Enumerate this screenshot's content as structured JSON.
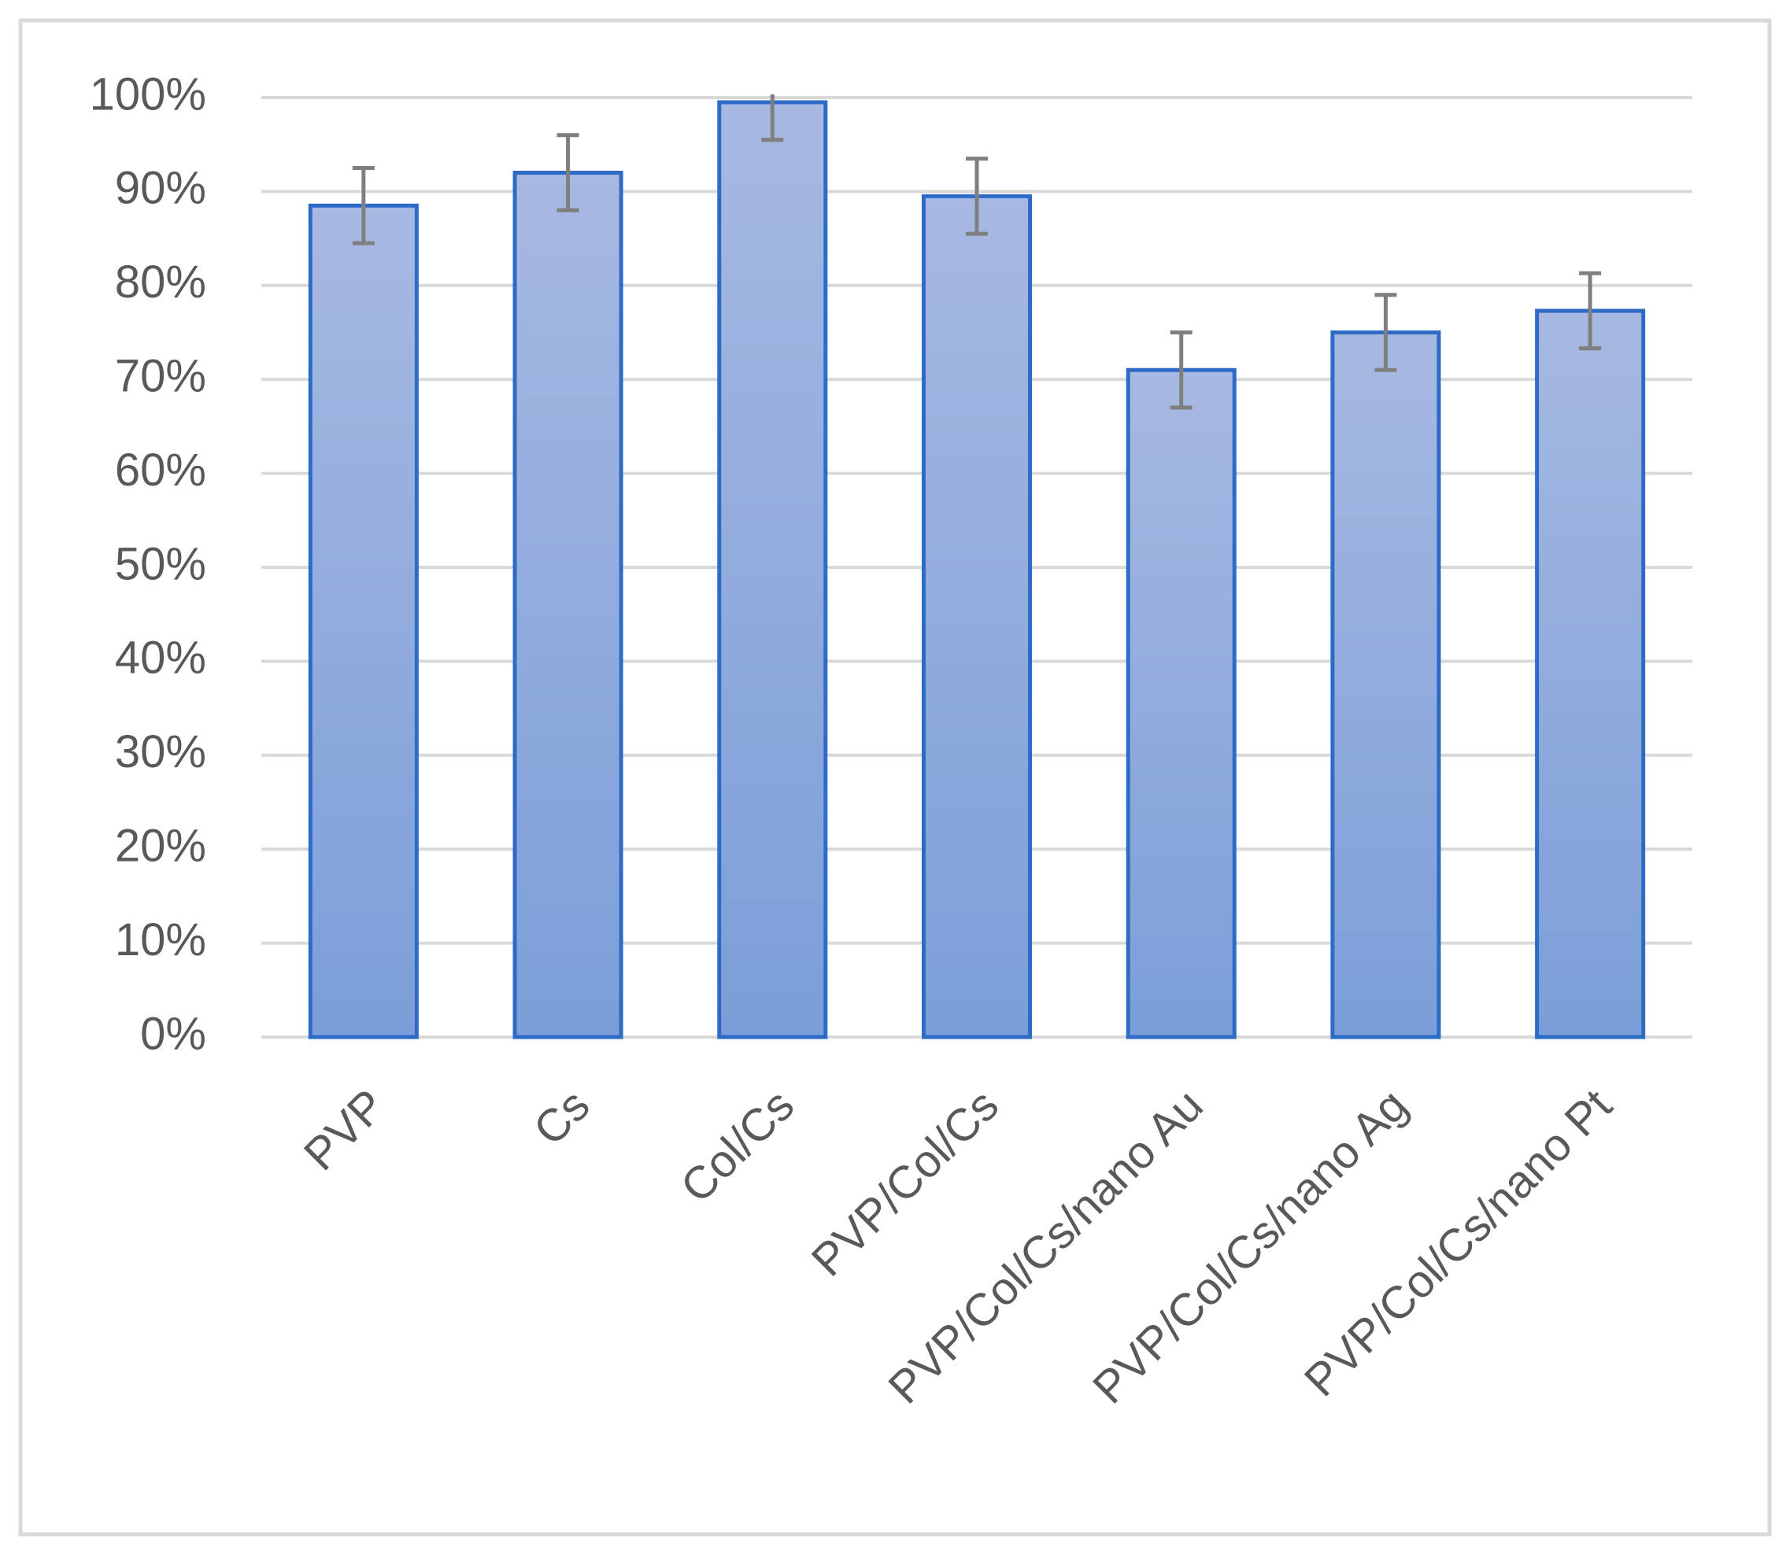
{
  "chart_data": {
    "type": "bar",
    "categories": [
      "PVP",
      "Cs",
      "Col/Cs",
      "PVP/Col/Cs",
      "PVP/Col/Cs/nano Au",
      "PVP/Col/Cs/nano Ag",
      "PVP/Col/Cs/nano Pt"
    ],
    "values": [
      88.5,
      92,
      99.5,
      89.5,
      71,
      75,
      77.3
    ],
    "errors": [
      4,
      4,
      4,
      4,
      4,
      4,
      4
    ],
    "color": "#8faadc",
    "edge_color": "#2e6bc6",
    "error_color": "#7f7f7f",
    "ylim": [
      0,
      100
    ],
    "yticks": [
      {
        "value": 0,
        "label": "0%"
      },
      {
        "value": 10,
        "label": "10%"
      },
      {
        "value": 20,
        "label": "20%"
      },
      {
        "value": 30,
        "label": "30%"
      },
      {
        "value": 40,
        "label": "40%"
      },
      {
        "value": 50,
        "label": "50%"
      },
      {
        "value": 60,
        "label": "60%"
      },
      {
        "value": 70,
        "label": "70%"
      },
      {
        "value": 80,
        "label": "80%"
      },
      {
        "value": 90,
        "label": "90%"
      },
      {
        "value": 100,
        "label": "100%"
      }
    ],
    "grid": true
  }
}
